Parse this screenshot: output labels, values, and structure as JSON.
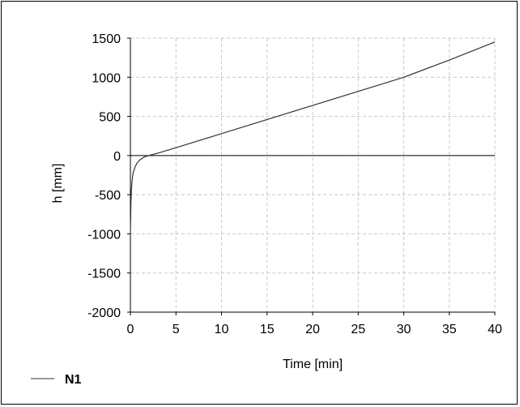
{
  "chart_data": {
    "type": "line",
    "title": "",
    "xlabel": "Time [min]",
    "ylabel": "h [mm]",
    "xlim": [
      0,
      40
    ],
    "ylim": [
      -2000,
      1500
    ],
    "x_ticks": [
      0,
      5,
      10,
      15,
      20,
      25,
      30,
      35,
      40
    ],
    "y_ticks": [
      1500,
      1000,
      500,
      0,
      -500,
      -1000,
      -1500,
      -2000
    ],
    "x_tick_labels": [
      "0",
      "5",
      "10",
      "15",
      "20",
      "25",
      "30",
      "35",
      "40"
    ],
    "y_tick_labels": [
      "1500",
      "1000",
      "500",
      "0",
      "-500",
      "-1000",
      "-1500",
      "-2000"
    ],
    "grid": true,
    "legend_position": "bottom-left",
    "series": [
      {
        "name": "N1",
        "color": "#333333",
        "x": [
          0,
          0.05,
          0.1,
          0.2,
          0.3,
          0.5,
          0.7,
          1.0,
          1.5,
          2.0,
          3.0,
          5.0,
          10,
          15,
          20,
          25,
          30,
          35,
          40
        ],
        "y": [
          -1000,
          -650,
          -450,
          -300,
          -220,
          -150,
          -100,
          -60,
          -20,
          0,
          30,
          100,
          280,
          460,
          640,
          820,
          1000,
          1220,
          1450
        ]
      }
    ]
  }
}
